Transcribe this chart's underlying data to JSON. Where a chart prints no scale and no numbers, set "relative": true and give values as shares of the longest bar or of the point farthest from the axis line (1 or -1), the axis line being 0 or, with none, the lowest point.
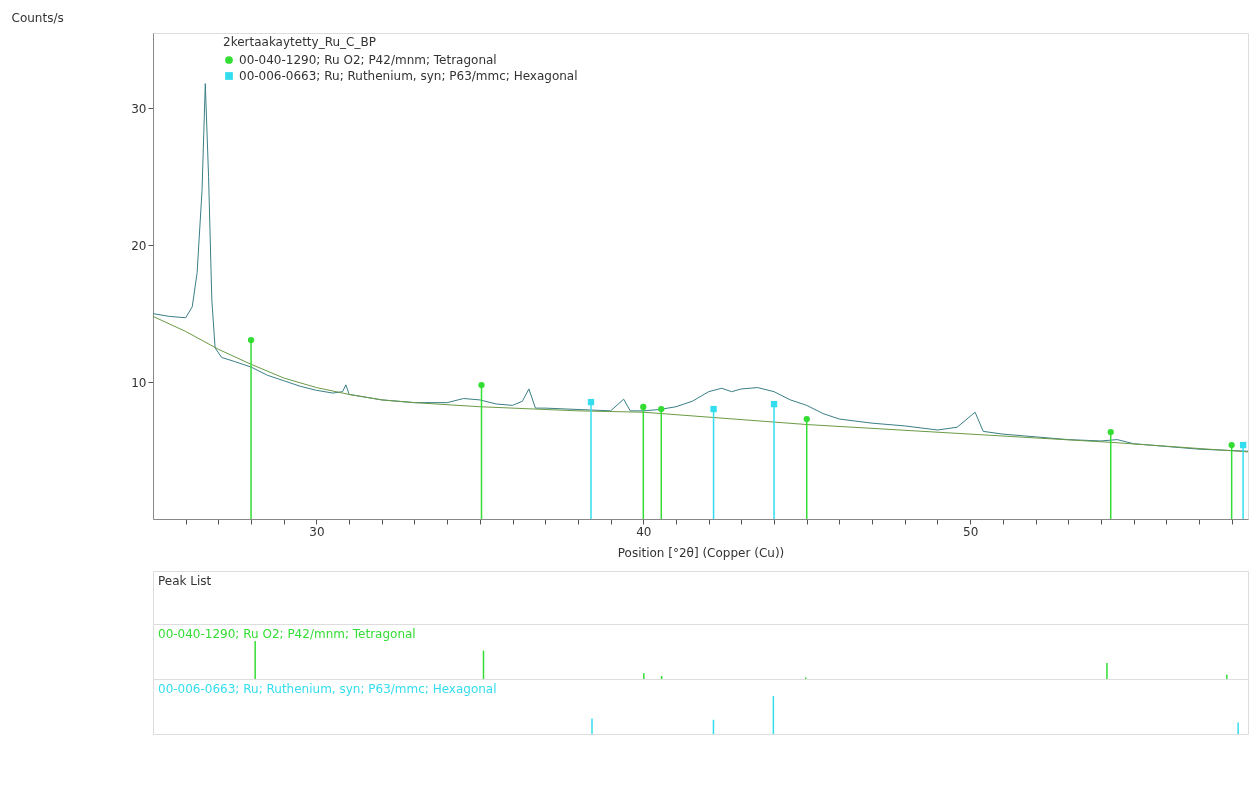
{
  "chart_data": [
    {
      "type": "line",
      "legend_title": "2kertaakaytetty_Ru_C_BP",
      "xlabel": "Position [°2θ] (Copper (Cu))",
      "ylabel": "Counts/s",
      "xlim": [
        25,
        58.5
      ],
      "ylim": [
        0,
        35.5
      ],
      "xticks": [
        {
          "value": 26,
          "label": null
        },
        {
          "value": 27,
          "label": null
        },
        {
          "value": 28,
          "label": null
        },
        {
          "value": 29,
          "label": null
        },
        30,
        {
          "value": 31,
          "label": null
        },
        {
          "value": 32,
          "label": null
        },
        {
          "value": 33,
          "label": null
        },
        {
          "value": 34,
          "label": null
        },
        {
          "value": 35,
          "label": null
        },
        {
          "value": 36,
          "label": null
        },
        {
          "value": 37,
          "label": null
        },
        {
          "value": 38,
          "label": null
        },
        {
          "value": 39,
          "label": null
        },
        40,
        {
          "value": 41,
          "label": null
        },
        {
          "value": 42,
          "label": null
        },
        {
          "value": 43,
          "label": null
        },
        {
          "value": 44,
          "label": null
        },
        {
          "value": 45,
          "label": null
        },
        {
          "value": 46,
          "label": null
        },
        {
          "value": 47,
          "label": null
        },
        {
          "value": 48,
          "label": null
        },
        {
          "value": 49,
          "label": null
        },
        50,
        {
          "value": 51,
          "label": null
        },
        {
          "value": 52,
          "label": null
        },
        {
          "value": 53,
          "label": null
        },
        {
          "value": 54,
          "label": null
        },
        {
          "value": 55,
          "label": null
        },
        {
          "value": 56,
          "label": null
        },
        {
          "value": 57,
          "label": null
        },
        {
          "value": 58,
          "label": null
        }
      ],
      "yticks": [
        10,
        20,
        30
      ],
      "grid": false,
      "legend": "top left",
      "series": [
        {
          "color": "#3a7f86",
          "x": [
            25.0,
            25.5,
            26.0,
            26.2,
            26.35,
            26.5,
            26.6,
            26.7,
            26.8,
            26.9,
            27.1,
            27.5,
            28.0,
            28.5,
            29.0,
            29.5,
            30.0,
            30.5,
            30.8,
            30.9,
            31.0,
            31.5,
            32.0,
            33.0,
            34.0,
            34.5,
            35.0,
            35.5,
            36.0,
            36.3,
            36.5,
            36.7,
            37.0,
            38.0,
            39.0,
            39.4,
            39.6,
            40.0,
            40.5,
            41.0,
            41.5,
            42.0,
            42.4,
            42.7,
            43.0,
            43.5,
            44.0,
            44.5,
            45.0,
            45.5,
            46.0,
            47.0,
            48.0,
            49.0,
            49.6,
            50.15,
            50.4,
            51.0,
            52.0,
            53.0,
            54.0,
            54.5,
            55.0,
            56.0,
            57.0,
            58.0,
            58.5
          ],
          "values": [
            15.0,
            14.8,
            14.7,
            15.5,
            18.0,
            24.0,
            31.8,
            25.0,
            16.0,
            12.5,
            11.8,
            11.5,
            11.1,
            10.5,
            10.1,
            9.7,
            9.4,
            9.2,
            9.3,
            9.8,
            9.1,
            8.9,
            8.7,
            8.5,
            8.5,
            8.8,
            8.7,
            8.4,
            8.3,
            8.6,
            9.5,
            8.1,
            8.1,
            8.0,
            7.9,
            8.75,
            7.9,
            7.9,
            8.0,
            8.2,
            8.6,
            9.3,
            9.55,
            9.3,
            9.5,
            9.6,
            9.3,
            8.7,
            8.3,
            7.7,
            7.3,
            7.0,
            6.8,
            6.5,
            6.7,
            7.8,
            6.4,
            6.2,
            6.0,
            5.8,
            5.7,
            5.8,
            5.5,
            5.3,
            5.1,
            5.0,
            4.95
          ]
        },
        {
          "color": "#6b9a45",
          "x": [
            25,
            26,
            27,
            28,
            29,
            30,
            31,
            32,
            33,
            35,
            38,
            40,
            45,
            50,
            54.3,
            58.5
          ],
          "values": [
            14.8,
            13.7,
            12.4,
            11.3,
            10.3,
            9.6,
            9.1,
            8.7,
            8.5,
            8.2,
            7.9,
            7.8,
            6.9,
            6.2,
            5.6,
            4.9
          ]
        },
        {
          "type": "lollipop",
          "name": "00-040-1290; Ru O2; P42/mnm; Tetragonal",
          "color": "#33dd33",
          "marker": "circle",
          "x": [
            28.0,
            35.05,
            40.0,
            40.55,
            45.0,
            54.3,
            58.0
          ],
          "values": [
            13.07,
            9.78,
            8.18,
            8.03,
            7.3,
            6.35,
            5.4
          ]
        },
        {
          "type": "lollipop",
          "name": "00-006-0663; Ru; Ruthenium, syn; P63/mmc; Hexagonal",
          "color": "#33ddee",
          "marker": "square",
          "x": [
            38.4,
            42.15,
            44.0,
            58.35
          ],
          "values": [
            8.54,
            8.03,
            8.39,
            5.4
          ]
        }
      ]
    },
    {
      "type": "other",
      "title": "Peak List"
    },
    {
      "type": "bar",
      "relative": true,
      "tick_labels": false,
      "title": "00-040-1290; Ru O2; P42/mnm; Tetragonal",
      "color": "#33dd33",
      "xlim": [
        25,
        58.5
      ],
      "x": [
        28.0,
        35.05,
        40.0,
        40.55,
        45.0,
        54.3,
        58.0
      ],
      "values": [
        1,
        0.75,
        0.15,
        0.08,
        0.04,
        0.42,
        0.11
      ]
    },
    {
      "type": "bar",
      "relative": true,
      "tick_labels": false,
      "title": "00-006-0663; Ru; Ruthenium, syn; P63/mmc; Hexagonal",
      "color": "#33ddee",
      "xlim": [
        25,
        58.5
      ],
      "x": [
        38.4,
        42.15,
        44.0,
        58.35
      ],
      "values": [
        0.41,
        0.375,
        1,
        0.3
      ]
    }
  ]
}
